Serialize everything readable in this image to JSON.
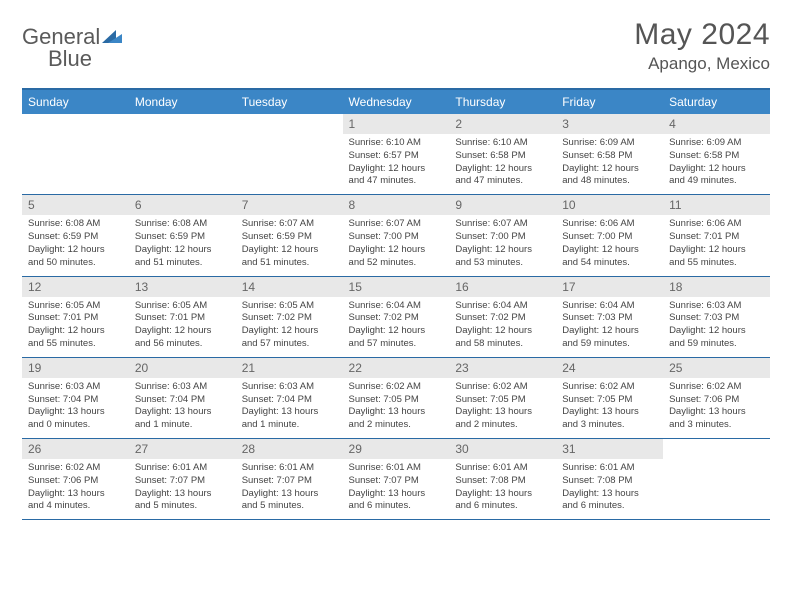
{
  "logo": {
    "part1": "General",
    "part2": "Blue"
  },
  "title": "May 2024",
  "location": "Apango, Mexico",
  "colors": {
    "header_bg": "#3b86c6",
    "header_border": "#2a6aa4",
    "daynum_bg": "#e8e8e8",
    "text": "#444444",
    "title_color": "#555555"
  },
  "day_labels": [
    "Sunday",
    "Monday",
    "Tuesday",
    "Wednesday",
    "Thursday",
    "Friday",
    "Saturday"
  ],
  "weeks": [
    [
      {
        "n": "",
        "lines": []
      },
      {
        "n": "",
        "lines": []
      },
      {
        "n": "",
        "lines": []
      },
      {
        "n": "1",
        "lines": [
          "Sunrise: 6:10 AM",
          "Sunset: 6:57 PM",
          "Daylight: 12 hours",
          "and 47 minutes."
        ]
      },
      {
        "n": "2",
        "lines": [
          "Sunrise: 6:10 AM",
          "Sunset: 6:58 PM",
          "Daylight: 12 hours",
          "and 47 minutes."
        ]
      },
      {
        "n": "3",
        "lines": [
          "Sunrise: 6:09 AM",
          "Sunset: 6:58 PM",
          "Daylight: 12 hours",
          "and 48 minutes."
        ]
      },
      {
        "n": "4",
        "lines": [
          "Sunrise: 6:09 AM",
          "Sunset: 6:58 PM",
          "Daylight: 12 hours",
          "and 49 minutes."
        ]
      }
    ],
    [
      {
        "n": "5",
        "lines": [
          "Sunrise: 6:08 AM",
          "Sunset: 6:59 PM",
          "Daylight: 12 hours",
          "and 50 minutes."
        ]
      },
      {
        "n": "6",
        "lines": [
          "Sunrise: 6:08 AM",
          "Sunset: 6:59 PM",
          "Daylight: 12 hours",
          "and 51 minutes."
        ]
      },
      {
        "n": "7",
        "lines": [
          "Sunrise: 6:07 AM",
          "Sunset: 6:59 PM",
          "Daylight: 12 hours",
          "and 51 minutes."
        ]
      },
      {
        "n": "8",
        "lines": [
          "Sunrise: 6:07 AM",
          "Sunset: 7:00 PM",
          "Daylight: 12 hours",
          "and 52 minutes."
        ]
      },
      {
        "n": "9",
        "lines": [
          "Sunrise: 6:07 AM",
          "Sunset: 7:00 PM",
          "Daylight: 12 hours",
          "and 53 minutes."
        ]
      },
      {
        "n": "10",
        "lines": [
          "Sunrise: 6:06 AM",
          "Sunset: 7:00 PM",
          "Daylight: 12 hours",
          "and 54 minutes."
        ]
      },
      {
        "n": "11",
        "lines": [
          "Sunrise: 6:06 AM",
          "Sunset: 7:01 PM",
          "Daylight: 12 hours",
          "and 55 minutes."
        ]
      }
    ],
    [
      {
        "n": "12",
        "lines": [
          "Sunrise: 6:05 AM",
          "Sunset: 7:01 PM",
          "Daylight: 12 hours",
          "and 55 minutes."
        ]
      },
      {
        "n": "13",
        "lines": [
          "Sunrise: 6:05 AM",
          "Sunset: 7:01 PM",
          "Daylight: 12 hours",
          "and 56 minutes."
        ]
      },
      {
        "n": "14",
        "lines": [
          "Sunrise: 6:05 AM",
          "Sunset: 7:02 PM",
          "Daylight: 12 hours",
          "and 57 minutes."
        ]
      },
      {
        "n": "15",
        "lines": [
          "Sunrise: 6:04 AM",
          "Sunset: 7:02 PM",
          "Daylight: 12 hours",
          "and 57 minutes."
        ]
      },
      {
        "n": "16",
        "lines": [
          "Sunrise: 6:04 AM",
          "Sunset: 7:02 PM",
          "Daylight: 12 hours",
          "and 58 minutes."
        ]
      },
      {
        "n": "17",
        "lines": [
          "Sunrise: 6:04 AM",
          "Sunset: 7:03 PM",
          "Daylight: 12 hours",
          "and 59 minutes."
        ]
      },
      {
        "n": "18",
        "lines": [
          "Sunrise: 6:03 AM",
          "Sunset: 7:03 PM",
          "Daylight: 12 hours",
          "and 59 minutes."
        ]
      }
    ],
    [
      {
        "n": "19",
        "lines": [
          "Sunrise: 6:03 AM",
          "Sunset: 7:04 PM",
          "Daylight: 13 hours",
          "and 0 minutes."
        ]
      },
      {
        "n": "20",
        "lines": [
          "Sunrise: 6:03 AM",
          "Sunset: 7:04 PM",
          "Daylight: 13 hours",
          "and 1 minute."
        ]
      },
      {
        "n": "21",
        "lines": [
          "Sunrise: 6:03 AM",
          "Sunset: 7:04 PM",
          "Daylight: 13 hours",
          "and 1 minute."
        ]
      },
      {
        "n": "22",
        "lines": [
          "Sunrise: 6:02 AM",
          "Sunset: 7:05 PM",
          "Daylight: 13 hours",
          "and 2 minutes."
        ]
      },
      {
        "n": "23",
        "lines": [
          "Sunrise: 6:02 AM",
          "Sunset: 7:05 PM",
          "Daylight: 13 hours",
          "and 2 minutes."
        ]
      },
      {
        "n": "24",
        "lines": [
          "Sunrise: 6:02 AM",
          "Sunset: 7:05 PM",
          "Daylight: 13 hours",
          "and 3 minutes."
        ]
      },
      {
        "n": "25",
        "lines": [
          "Sunrise: 6:02 AM",
          "Sunset: 7:06 PM",
          "Daylight: 13 hours",
          "and 3 minutes."
        ]
      }
    ],
    [
      {
        "n": "26",
        "lines": [
          "Sunrise: 6:02 AM",
          "Sunset: 7:06 PM",
          "Daylight: 13 hours",
          "and 4 minutes."
        ]
      },
      {
        "n": "27",
        "lines": [
          "Sunrise: 6:01 AM",
          "Sunset: 7:07 PM",
          "Daylight: 13 hours",
          "and 5 minutes."
        ]
      },
      {
        "n": "28",
        "lines": [
          "Sunrise: 6:01 AM",
          "Sunset: 7:07 PM",
          "Daylight: 13 hours",
          "and 5 minutes."
        ]
      },
      {
        "n": "29",
        "lines": [
          "Sunrise: 6:01 AM",
          "Sunset: 7:07 PM",
          "Daylight: 13 hours",
          "and 6 minutes."
        ]
      },
      {
        "n": "30",
        "lines": [
          "Sunrise: 6:01 AM",
          "Sunset: 7:08 PM",
          "Daylight: 13 hours",
          "and 6 minutes."
        ]
      },
      {
        "n": "31",
        "lines": [
          "Sunrise: 6:01 AM",
          "Sunset: 7:08 PM",
          "Daylight: 13 hours",
          "and 6 minutes."
        ]
      },
      {
        "n": "",
        "lines": []
      }
    ]
  ]
}
